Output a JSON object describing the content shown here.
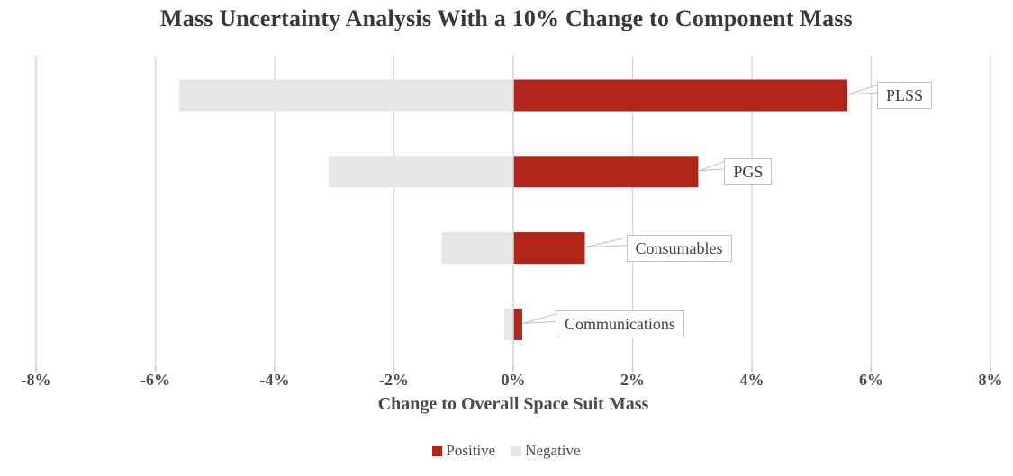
{
  "title": "Mass Uncertainty Analysis With a 10% Change to Component Mass",
  "chart_data": {
    "type": "bar",
    "orientation": "horizontal-tornado",
    "title": "Mass Uncertainty Analysis With a 10% Change to Component Mass",
    "categories": [
      "PLSS",
      "PGS",
      "Consumables",
      "Communications"
    ],
    "series": [
      {
        "name": "Positive",
        "color": "#B0241A",
        "values": [
          5.6,
          3.1,
          1.2,
          0.15
        ]
      },
      {
        "name": "Negative",
        "color": "#E6E6E6",
        "values": [
          -5.6,
          -3.1,
          -1.2,
          -0.15
        ]
      }
    ],
    "xlabel": "Change to Overall Space Suit Mass",
    "ylabel": "",
    "xlim": [
      -8,
      8
    ],
    "x_tick_step": 2,
    "x_tick_labels": [
      "-8%",
      "-6%",
      "-4%",
      "-2%",
      "0%",
      "2%",
      "4%",
      "6%",
      "8%"
    ],
    "value_unit": "%",
    "grid": true,
    "gridline_color": "#D9D9D9",
    "tick_mark_color": "#BFBFBF",
    "callout_border_color": "#BFBFBF",
    "axis_text_color": "#4A4A4A",
    "title_color": "#383838",
    "legend_position": "bottom"
  }
}
